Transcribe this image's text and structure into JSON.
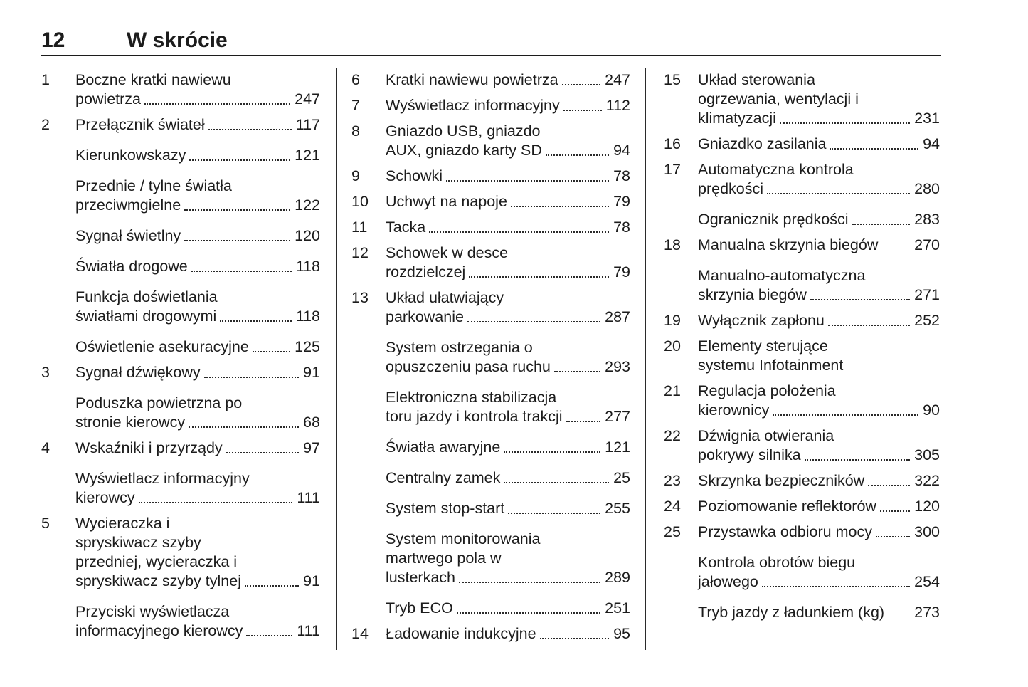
{
  "colors": {
    "text": "#1c1c1c",
    "background": "#ffffff"
  },
  "header": {
    "page_number": "12",
    "title": "W skrócie"
  },
  "toc": {
    "columns": [
      {
        "entries": [
          {
            "num": "1",
            "lines": [
              "Boczne kratki nawiewu",
              "powietrza"
            ],
            "page": "247"
          },
          {
            "num": "2",
            "lines": [
              "Przełącznik świateł"
            ],
            "page": "117"
          },
          {
            "num": "",
            "lines": [
              "Kierunkowskazy"
            ],
            "page": "121"
          },
          {
            "num": "",
            "lines": [
              "Przednie / tylne światła",
              "przeciwmgielne"
            ],
            "page": "122"
          },
          {
            "num": "",
            "lines": [
              "Sygnał świetlny"
            ],
            "page": "120"
          },
          {
            "num": "",
            "lines": [
              "Światła drogowe"
            ],
            "page": "118"
          },
          {
            "num": "",
            "lines": [
              "Funkcja doświetlania",
              "światłami drogowymi"
            ],
            "page": "118"
          },
          {
            "num": "",
            "lines": [
              "Oświetlenie asekuracyjne"
            ],
            "page": "125"
          },
          {
            "num": "3",
            "lines": [
              "Sygnał dźwiękowy"
            ],
            "page": "91"
          },
          {
            "num": "",
            "lines": [
              "Poduszka powietrzna po",
              "stronie kierowcy"
            ],
            "page": "68"
          },
          {
            "num": "4",
            "lines": [
              "Wskaźniki i przyrządy"
            ],
            "page": "97"
          },
          {
            "num": "",
            "lines": [
              "Wyświetlacz informacyjny",
              "kierowcy"
            ],
            "page": "111"
          },
          {
            "num": "5",
            "lines": [
              "Wycieraczka i",
              "spryskiwacz szyby",
              "przedniej, wycieraczka i",
              "spryskiwacz szyby tylnej"
            ],
            "page": "91"
          },
          {
            "num": "",
            "lines": [
              "Przyciski wyświetlacza",
              "informacyjnego kierowcy"
            ],
            "page": "111"
          }
        ]
      },
      {
        "entries": [
          {
            "num": "6",
            "lines": [
              "Kratki nawiewu powietrza"
            ],
            "page": "247"
          },
          {
            "num": "7",
            "lines": [
              "Wyświetlacz informacyjny"
            ],
            "page": "112"
          },
          {
            "num": "8",
            "lines": [
              "Gniazdo USB, gniazdo",
              "AUX, gniazdo karty SD"
            ],
            "page": "94"
          },
          {
            "num": "9",
            "lines": [
              "Schowki"
            ],
            "page": "78"
          },
          {
            "num": "10",
            "lines": [
              "Uchwyt na napoje"
            ],
            "page": "79"
          },
          {
            "num": "11",
            "lines": [
              "Tacka"
            ],
            "page": "78"
          },
          {
            "num": "12",
            "lines": [
              "Schowek w desce",
              "rozdzielczej"
            ],
            "page": "79"
          },
          {
            "num": "13",
            "lines": [
              "Układ ułatwiający",
              "parkowanie"
            ],
            "page": "287"
          },
          {
            "num": "",
            "lines": [
              "System ostrzegania o",
              "opuszczeniu pasa ruchu"
            ],
            "page": "293"
          },
          {
            "num": "",
            "lines": [
              "Elektroniczna stabilizacja",
              "toru jazdy i kontrola trakcji"
            ],
            "page": "277"
          },
          {
            "num": "",
            "lines": [
              "Światła awaryjne"
            ],
            "page": "121"
          },
          {
            "num": "",
            "lines": [
              "Centralny zamek"
            ],
            "page": "25"
          },
          {
            "num": "",
            "lines": [
              "System stop-start"
            ],
            "page": "255"
          },
          {
            "num": "",
            "lines": [
              "System monitorowania",
              "martwego pola w",
              "lusterkach"
            ],
            "page": "289"
          },
          {
            "num": "",
            "lines": [
              "Tryb ECO"
            ],
            "page": "251"
          },
          {
            "num": "14",
            "lines": [
              "Ładowanie indukcyjne"
            ],
            "page": "95"
          }
        ]
      },
      {
        "entries": [
          {
            "num": "15",
            "lines": [
              "Układ sterowania",
              "ogrzewania, wentylacji i",
              "klimatyzacji"
            ],
            "page": "231"
          },
          {
            "num": "16",
            "lines": [
              "Gniazdko zasilania"
            ],
            "page": "94"
          },
          {
            "num": "17",
            "lines": [
              "Automatyczna kontrola",
              "prędkości"
            ],
            "page": "280"
          },
          {
            "num": "",
            "lines": [
              "Ogranicznik prędkości"
            ],
            "page": "283"
          },
          {
            "num": "18",
            "lines": [
              "Manualna skrzynia biegów"
            ],
            "page": "270",
            "leader": false
          },
          {
            "num": "",
            "lines": [
              "Manualno-automatyczna",
              "skrzynia biegów"
            ],
            "page": "271"
          },
          {
            "num": "19",
            "lines": [
              "Wyłącznik zapłonu"
            ],
            "page": "252"
          },
          {
            "num": "20",
            "lines": [
              "Elementy sterujące",
              "systemu Infotainment"
            ],
            "page": ""
          },
          {
            "num": "21",
            "lines": [
              "Regulacja położenia",
              "kierownicy"
            ],
            "page": "90"
          },
          {
            "num": "22",
            "lines": [
              "Dźwignia otwierania",
              "pokrywy silnika"
            ],
            "page": "305"
          },
          {
            "num": "23",
            "lines": [
              "Skrzynka bezpieczników"
            ],
            "page": "322"
          },
          {
            "num": "24",
            "lines": [
              "Poziomowanie reflektorów"
            ],
            "page": "120"
          },
          {
            "num": "25",
            "lines": [
              "Przystawka odbioru mocy"
            ],
            "page": "300"
          },
          {
            "num": "",
            "lines": [
              "Kontrola obrotów biegu",
              "jałowego"
            ],
            "page": "254"
          },
          {
            "num": "",
            "lines": [
              "Tryb jazdy z ładunkiem (kg)"
            ],
            "page": "273",
            "leader": false
          }
        ]
      }
    ]
  }
}
